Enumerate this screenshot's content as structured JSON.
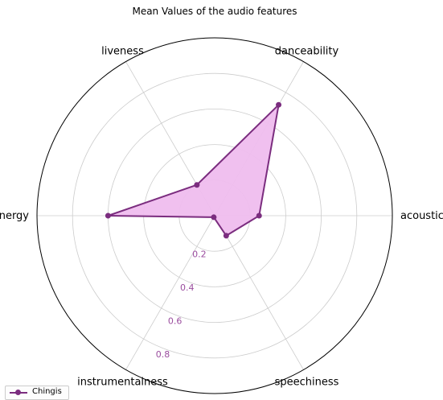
{
  "chart_data": {
    "type": "radar",
    "title": "Mean Values of the audio features",
    "categories": [
      "acousticness",
      "danceability",
      "liveness",
      "energy",
      "instrumentalness",
      "speechiness"
    ],
    "radial_ticks": [
      "0.2",
      "0.4",
      "0.6",
      "0.8"
    ],
    "radial_tick_values": [
      0.2,
      0.4,
      0.6,
      0.8
    ],
    "rlim": [
      0,
      1
    ],
    "grid": true,
    "legend_position": "bottom-left",
    "series": [
      {
        "name": "Chingis",
        "values": [
          0.25,
          0.72,
          0.2,
          0.6,
          0.01,
          0.13
        ]
      }
    ],
    "colors": {
      "line": "#7b2d7f",
      "fill": "#efbdee",
      "tick_text": "#9a4c9e",
      "grid": "#cccccc"
    }
  }
}
